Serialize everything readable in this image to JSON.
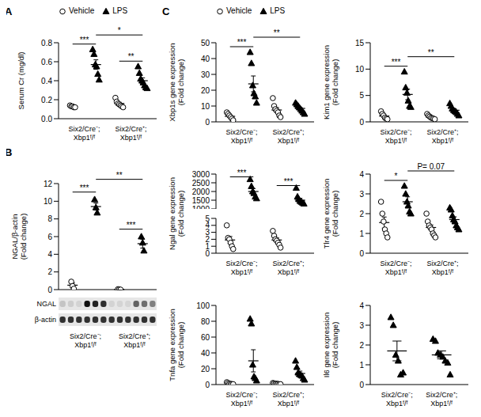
{
  "chart_data": [
    {
      "panel": "A",
      "type": "scatter",
      "legend": "top",
      "y_label": [
        "Serum Cr (mg/dl)"
      ],
      "categories": [
        "Six2/Cre⁻; Xbp1ᶠ/ᶠ",
        "Six2/Cre⁺; Xbp1ᶠ/ᶠ"
      ],
      "ylim": [
        0,
        0.8
      ],
      "yticks": [
        {
          "value": 0,
          "label": "0.0"
        },
        0.2,
        0.4,
        0.6,
        0.8
      ],
      "series": [
        {
          "name": "Vehicle",
          "marker": "open_circle",
          "color": "#000000",
          "values": [
            [
              0.14,
              0.13,
              0.13,
              0.12,
              0.12
            ],
            [
              0.22,
              0.18,
              0.16,
              0.15,
              0.14,
              0.13,
              0.12
            ]
          ],
          "mean": [
            0.13,
            0.16
          ],
          "sem": [
            0.004,
            0.013
          ]
        },
        {
          "name": "LPS",
          "marker": "triangle",
          "color": "#000000",
          "values": [
            [
              0.73,
              0.68,
              0.57,
              0.55,
              0.47,
              0.41
            ],
            [
              0.55,
              0.48,
              0.42,
              0.4,
              0.38,
              0.35,
              0.33,
              0.32
            ]
          ],
          "mean": [
            0.57,
            0.4
          ],
          "sem": [
            0.05,
            0.03
          ]
        }
      ],
      "comparisons": [
        {
          "groups": [
            0,
            1
          ],
          "label": "***"
        },
        {
          "groups": [
            1,
            3
          ],
          "label": "*"
        },
        {
          "groups": [
            2,
            3
          ],
          "label": "**"
        }
      ]
    },
    {
      "panel": "B",
      "type": "scatter",
      "y_label": [
        "NGAL/β-actin",
        "(Fold change)"
      ],
      "categories": [
        "Six2/Cre⁻; Xbp1ᶠ/ᶠ",
        "Six2/Cre⁺; Xbp1ᶠ/ᶠ"
      ],
      "ylim": [
        0,
        12
      ],
      "yticks": [
        0,
        2,
        4,
        6,
        8,
        10,
        12
      ],
      "blot_rows": [
        "NGAL",
        "β-actin"
      ],
      "series": [
        {
          "name": "Vehicle",
          "marker": "open_circle",
          "color": "#000000",
          "values": [
            [
              0.9,
              0.4,
              0.1
            ],
            [
              0.05,
              0.02,
              0
            ]
          ],
          "mean": [
            0.5,
            0.02
          ],
          "sem": [
            0.25,
            0.01
          ]
        },
        {
          "name": "LPS",
          "marker": "triangle",
          "color": "#000000",
          "values": [
            [
              10.2,
              9.3,
              8.7
            ],
            [
              6,
              5.3,
              4.4
            ]
          ],
          "mean": [
            9.4,
            5.2
          ],
          "sem": [
            0.4,
            0.5
          ]
        }
      ],
      "comparisons": [
        {
          "groups": [
            0,
            1
          ],
          "label": "***"
        },
        {
          "groups": [
            1,
            3
          ],
          "label": "**"
        },
        {
          "groups": [
            2,
            3
          ],
          "label": "***"
        }
      ]
    },
    {
      "panel": "C",
      "type": "scatter",
      "legend": "top",
      "y_label": [
        "Xbp1s gene expression",
        "(Fold change)"
      ],
      "categories": [
        "Six2/Cre⁻; Xbp1ᶠ/ᶠ",
        "Six2/Cre⁺; Xbp1ᶠ/ᶠ"
      ],
      "ylim": [
        0,
        50
      ],
      "yticks": [
        0,
        10,
        20,
        30,
        40,
        50
      ],
      "series": [
        {
          "name": "Vehicle",
          "marker": "open_circle",
          "color": "#000000",
          "values": [
            [
              6,
              5,
              4,
              3,
              2,
              1
            ],
            [
              15,
              10,
              8,
              7,
              6,
              4,
              3
            ]
          ],
          "mean": [
            3.5,
            7.5
          ],
          "sem": [
            0.8,
            1.5
          ]
        },
        {
          "name": "LPS",
          "marker": "triangle",
          "color": "#000000",
          "values": [
            [
              44,
              37,
              23,
              18,
              16,
              12
            ],
            [
              12,
              11,
              10,
              9,
              8,
              7,
              6,
              5
            ]
          ],
          "mean": [
            24,
            8.5
          ],
          "sem": [
            5,
            0.8
          ]
        }
      ],
      "comparisons": [
        {
          "groups": [
            0,
            1
          ],
          "label": "***"
        },
        {
          "groups": [
            1,
            3
          ],
          "label": "**"
        }
      ]
    },
    {
      "type": "scatter",
      "y_label": [
        "Kim1 gene expression",
        "(Fold change)"
      ],
      "categories": [
        "Six2/Cre⁻; Xbp1ᶠ/ᶠ",
        "Six2/Cre⁺; Xbp1ᶠ/ᶠ"
      ],
      "ylim": [
        0,
        15
      ],
      "yticks": [
        0,
        5,
        10,
        15
      ],
      "series": [
        {
          "name": "Vehicle",
          "marker": "open_circle",
          "color": "#000000",
          "values": [
            [
              2,
              1.5,
              1.2,
              0.8,
              0.6,
              0.5
            ],
            [
              1.5,
              1.2,
              1,
              0.8,
              0.7,
              0.6,
              0.5
            ]
          ],
          "mean": [
            1.1,
            0.9
          ],
          "sem": [
            0.2,
            0.13
          ]
        },
        {
          "name": "LPS",
          "marker": "triangle",
          "color": "#000000",
          "values": [
            [
              9.5,
              6.5,
              5.5,
              4,
              3,
              2.8
            ],
            [
              3.5,
              3,
              2.5,
              2.2,
              2,
              1.8,
              1.5,
              1.2
            ]
          ],
          "mean": [
            5.2,
            2.2
          ],
          "sem": [
            1,
            0.3
          ]
        }
      ],
      "comparisons": [
        {
          "groups": [
            0,
            1
          ],
          "label": "***"
        },
        {
          "groups": [
            1,
            3
          ],
          "label": "**"
        }
      ]
    },
    {
      "type": "scatter",
      "y_label": [
        "Ngal gene expression",
        "(Fold change)"
      ],
      "categories": [
        "Six2/Cre⁻; Xbp1ᶠ/ᶠ",
        "Six2/Cre⁺; Xbp1ᶠ/ᶠ"
      ],
      "segments": [
        {
          "ylim": [
            0,
            5
          ],
          "yticks": [
            0,
            1,
            2,
            3,
            4,
            5
          ]
        },
        {
          "ylim": [
            1000,
            3000
          ],
          "yticks": [
            1000,
            1500,
            2000,
            2500,
            3000
          ]
        }
      ],
      "series": [
        {
          "name": "Vehicle",
          "marker": "open_circle",
          "color": "#000000",
          "values": [
            [
              4,
              2.2,
              2,
              1.5,
              1,
              0.6
            ],
            [
              3.2,
              2.5,
              2,
              1.8,
              1.5,
              1.2,
              0.8
            ]
          ],
          "mean": [
            1.9,
            1.9
          ],
          "sem": [
            0.5,
            0.3
          ]
        },
        {
          "name": "LPS",
          "marker": "triangle",
          "color": "#000000",
          "values": [
            [
              2700,
              2300,
              2000,
              1900,
              1700,
              1600
            ],
            [
              2200,
              1700,
              1550,
              1450,
              1400,
              1350,
              1300
            ]
          ],
          "mean": [
            2000,
            1500
          ],
          "sem": [
            170,
            110
          ]
        }
      ],
      "comparisons": [
        {
          "groups": [
            0,
            1
          ],
          "label": "***"
        },
        {
          "groups": [
            2,
            3
          ],
          "label": "***"
        }
      ]
    },
    {
      "type": "scatter",
      "y_label": [
        "Tlr4 gene expression",
        "(Fold change)"
      ],
      "categories": [
        "Six2/Cre⁻; Xbp1ᶠ/ᶠ",
        "Six2/Cre⁺; Xbp1ᶠ/ᶠ"
      ],
      "ylim": [
        0,
        4
      ],
      "yticks": [
        0,
        1,
        2,
        3,
        4
      ],
      "series": [
        {
          "name": "Vehicle",
          "marker": "open_circle",
          "color": "#000000",
          "values": [
            [
              2.6,
              2,
              1.6,
              1.2,
              1,
              0.8
            ],
            [
              2,
              1.6,
              1.4,
              1.3,
              1.2,
              1,
              0.9,
              0.8
            ]
          ],
          "mean": [
            1.55,
            1.3
          ],
          "sem": [
            0.28,
            0.13
          ]
        },
        {
          "name": "LPS",
          "marker": "triangle",
          "color": "#000000",
          "values": [
            [
              3.4,
              3,
              2.6,
              2.4,
              2.1,
              2
            ],
            [
              2.3,
              2.2,
              1.9,
              1.7,
              1.6,
              1.4,
              1.3,
              1.2
            ]
          ],
          "mean": [
            2.6,
            1.7
          ],
          "sem": [
            0.25,
            0.14
          ]
        }
      ],
      "comparisons": [
        {
          "groups": [
            0,
            1
          ],
          "label": "*"
        },
        {
          "groups": [
            1,
            3
          ],
          "label": "P= 0.07"
        }
      ]
    },
    {
      "type": "scatter",
      "y_label": [
        "Tnfa gene expression",
        "(Fold change)"
      ],
      "categories": [
        "Six2/Cre⁻; Xbp1ᶠ/ᶠ",
        "Six2/Cre⁺; Xbp1ᶠ/ᶠ"
      ],
      "ylim": [
        0,
        100
      ],
      "yticks": [
        0,
        20,
        40,
        60,
        80,
        100
      ],
      "series": [
        {
          "name": "Vehicle",
          "marker": "open_circle",
          "color": "#000000",
          "values": [
            [
              3,
              2,
              1,
              1,
              0.5,
              0.5
            ],
            [
              2,
              1.5,
              1,
              1,
              0.8,
              0.5,
              0.5
            ]
          ],
          "mean": [
            1.5,
            1
          ],
          "sem": [
            0.5,
            0.2
          ]
        },
        {
          "name": "LPS",
          "marker": "triangle",
          "color": "#000000",
          "values": [
            [
              83,
              77,
              25,
              10,
              8,
              5
            ],
            [
              30,
              22,
              15,
              13,
              12,
              11,
              8,
              6
            ]
          ],
          "mean": [
            30,
            14
          ],
          "sem": [
            14,
            3
          ]
        }
      ],
      "comparisons": []
    },
    {
      "type": "scatter",
      "y_label": [
        "Il6 gene expression",
        "(Fold change)"
      ],
      "categories": [
        "Six2/Cre⁻; Xbp1ᶠ/ᶠ",
        "Six2/Cre⁺; Xbp1ᶠ/ᶠ"
      ],
      "ylim": [
        0,
        4
      ],
      "yticks": [
        0,
        1,
        2,
        3,
        4
      ],
      "series": [
        {
          "name": "LPS",
          "marker": "triangle",
          "color": "#000000",
          "values": [
            [
              3.4,
              3,
              1.5,
              1.2,
              0.5,
              0.6
            ],
            [
              2.3,
              2.2,
              1.6,
              1.5,
              1.4,
              1.2,
              1.1,
              0.5
            ]
          ],
          "mean": [
            1.7,
            1.5
          ],
          "sem": [
            0.5,
            0.2
          ]
        }
      ],
      "comparisons": []
    }
  ]
}
